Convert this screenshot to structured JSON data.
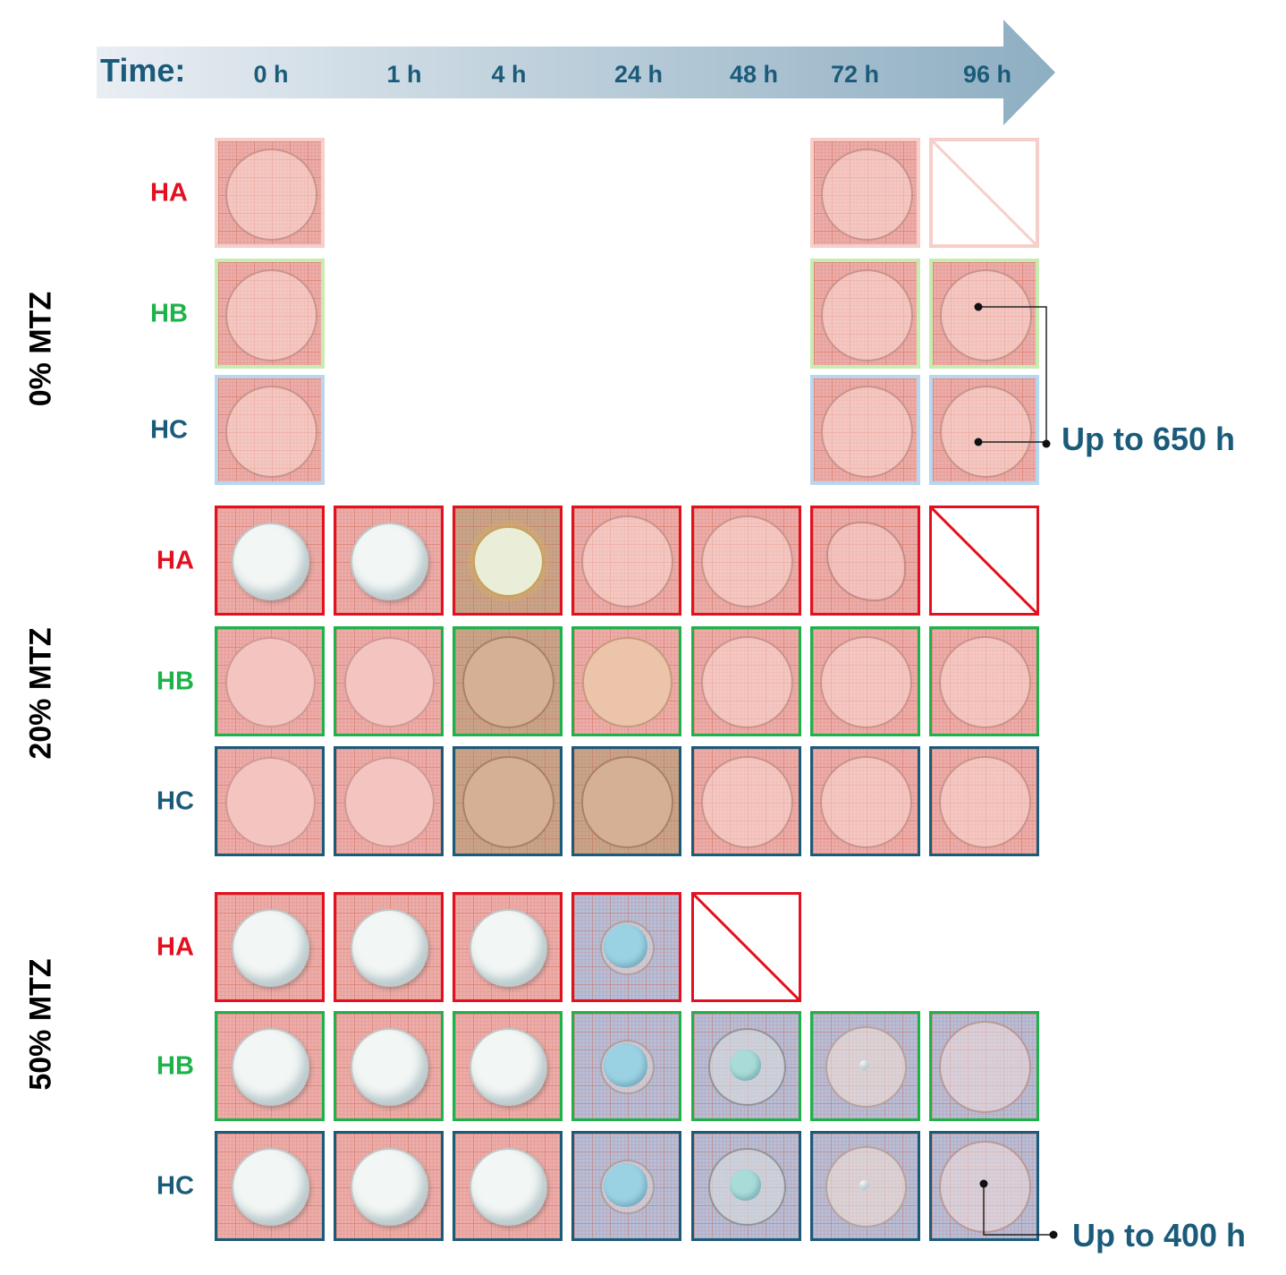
{
  "timeline": {
    "title": "Time:",
    "ticks": [
      "0 h",
      "1 h",
      "4 h",
      "24 h",
      "48 h",
      "72 h",
      "96 h"
    ]
  },
  "colors": {
    "HA": "#e3101f",
    "HB": "#1db34a",
    "HC": "#1b5b7a",
    "HA_light": "#f6cfca",
    "HB_light": "#c8ecb0",
    "HC_light": "#b6d7ef",
    "label": "#1b5b7a"
  },
  "groups": [
    {
      "label": "0% MTZ",
      "rows": [
        {
          "label": "HA",
          "tiles": [
            "clear",
            null,
            null,
            null,
            null,
            "clear",
            "slash"
          ]
        },
        {
          "label": "HB",
          "tiles": [
            "clear",
            null,
            null,
            null,
            null,
            "clear",
            "clear"
          ]
        },
        {
          "label": "HC",
          "tiles": [
            "clear",
            null,
            null,
            null,
            null,
            "clear",
            "clear"
          ]
        }
      ]
    },
    {
      "label": "20% MTZ",
      "rows": [
        {
          "label": "HA",
          "tiles": [
            "white",
            "white",
            "cream",
            "clear",
            "clear",
            "fragment",
            "slash"
          ]
        },
        {
          "label": "HB",
          "tiles": [
            "pinkish",
            "pinkish",
            "tan",
            "tan-light",
            "clear",
            "clear",
            "clear"
          ]
        },
        {
          "label": "HC",
          "tiles": [
            "pinkish",
            "pinkish",
            "tan",
            "tan",
            "clear",
            "clear",
            "clear"
          ]
        }
      ]
    },
    {
      "label": "50% MTZ",
      "rows": [
        {
          "label": "HA",
          "tiles": [
            "white",
            "white",
            "white",
            "blue-core",
            "slash",
            null,
            null
          ]
        },
        {
          "label": "HB",
          "tiles": [
            "white",
            "white",
            "white",
            "blue-core",
            "blue-core-ring",
            "clear-dot",
            "clear"
          ]
        },
        {
          "label": "HC",
          "tiles": [
            "white",
            "white",
            "white",
            "blue-core",
            "blue-core-ring",
            "clear-dot",
            "clear"
          ]
        }
      ]
    }
  ],
  "annotations": [
    {
      "text": "Up to 650 h"
    },
    {
      "text": "Up to 400 h"
    }
  ]
}
